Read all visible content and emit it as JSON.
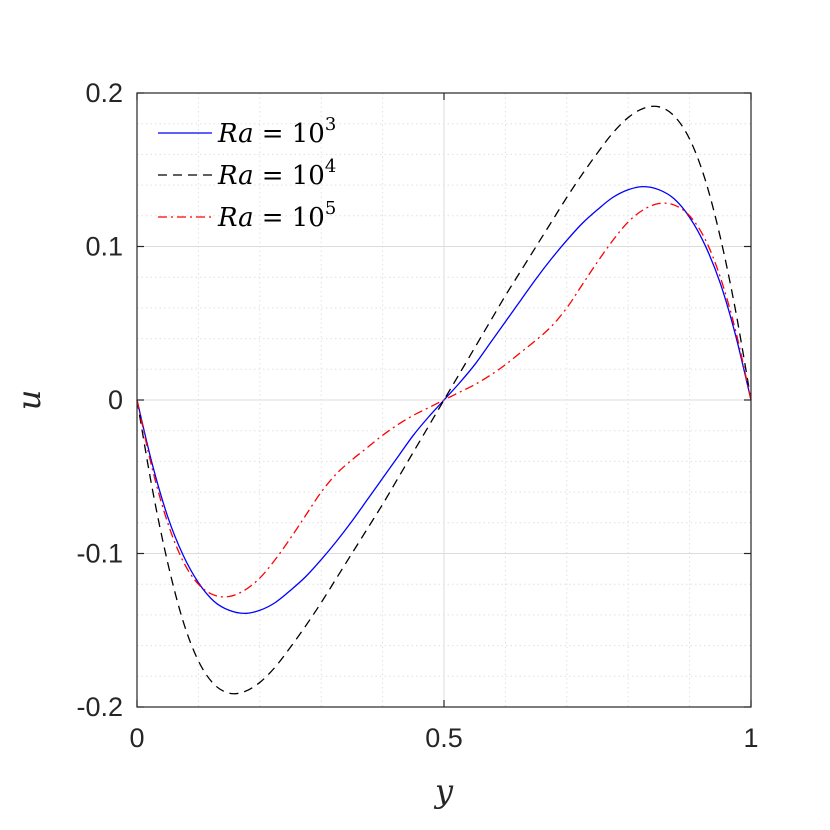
{
  "chart_data": {
    "type": "line",
    "xlabel": "y",
    "ylabel": "u",
    "xlim": [
      0,
      1
    ],
    "ylim": [
      -0.2,
      0.2
    ],
    "xticks": [
      0,
      0.5,
      1
    ],
    "xtick_labels": [
      "0",
      "0.5",
      "1"
    ],
    "yticks": [
      -0.2,
      -0.1,
      0,
      0.1,
      0.2
    ],
    "ytick_labels": [
      "-0.2",
      "-0.1",
      "0",
      "0.1",
      "0.2"
    ],
    "grid": true,
    "minor_grid": true,
    "legend_position": "top-left",
    "series": [
      {
        "name": "Ra = 10^3",
        "legend_base": "Ra = 10",
        "legend_exp": "3",
        "color": "#0000ff",
        "dash": "solid",
        "x": [
          0,
          0.025,
          0.05,
          0.075,
          0.1,
          0.125,
          0.15,
          0.175,
          0.2,
          0.225,
          0.25,
          0.275,
          0.3,
          0.325,
          0.35,
          0.375,
          0.4,
          0.425,
          0.45,
          0.475,
          0.5,
          0.525,
          0.55,
          0.575,
          0.6,
          0.625,
          0.65,
          0.675,
          0.7,
          0.725,
          0.75,
          0.775,
          0.8,
          0.825,
          0.85,
          0.875,
          0.9,
          0.925,
          0.95,
          0.975,
          1
        ],
        "y": [
          0,
          -0.042,
          -0.076,
          -0.101,
          -0.119,
          -0.131,
          -0.137,
          -0.139,
          -0.137,
          -0.132,
          -0.124,
          -0.115,
          -0.104,
          -0.092,
          -0.079,
          -0.065,
          -0.051,
          -0.037,
          -0.023,
          -0.011,
          0,
          0.011,
          0.023,
          0.037,
          0.051,
          0.065,
          0.079,
          0.092,
          0.104,
          0.115,
          0.124,
          0.132,
          0.137,
          0.139,
          0.137,
          0.131,
          0.119,
          0.101,
          0.076,
          0.042,
          0
        ]
      },
      {
        "name": "Ra = 10^4",
        "legend_base": "Ra = 10",
        "legend_exp": "4",
        "color": "#000000",
        "dash": "dashed",
        "x": [
          0,
          0.025,
          0.05,
          0.075,
          0.1,
          0.125,
          0.15,
          0.175,
          0.2,
          0.225,
          0.25,
          0.275,
          0.3,
          0.325,
          0.35,
          0.375,
          0.4,
          0.425,
          0.45,
          0.475,
          0.5,
          0.525,
          0.55,
          0.575,
          0.6,
          0.625,
          0.65,
          0.675,
          0.7,
          0.725,
          0.75,
          0.775,
          0.8,
          0.825,
          0.85,
          0.875,
          0.9,
          0.925,
          0.95,
          0.975,
          1
        ],
        "y": [
          0,
          -0.058,
          -0.106,
          -0.144,
          -0.17,
          -0.185,
          -0.191,
          -0.19,
          -0.184,
          -0.174,
          -0.161,
          -0.147,
          -0.132,
          -0.116,
          -0.1,
          -0.084,
          -0.068,
          -0.051,
          -0.034,
          -0.017,
          0,
          0.017,
          0.034,
          0.051,
          0.068,
          0.084,
          0.1,
          0.116,
          0.132,
          0.147,
          0.161,
          0.174,
          0.184,
          0.19,
          0.191,
          0.185,
          0.17,
          0.144,
          0.106,
          0.058,
          0
        ]
      },
      {
        "name": "Ra = 10^5",
        "legend_base": "Ra = 10",
        "legend_exp": "5",
        "color": "#ff0000",
        "dash": "dashdot",
        "x": [
          0,
          0.025,
          0.05,
          0.075,
          0.1,
          0.125,
          0.15,
          0.175,
          0.2,
          0.225,
          0.25,
          0.275,
          0.3,
          0.325,
          0.35,
          0.375,
          0.4,
          0.425,
          0.45,
          0.475,
          0.5,
          0.525,
          0.55,
          0.575,
          0.6,
          0.625,
          0.65,
          0.675,
          0.7,
          0.725,
          0.75,
          0.775,
          0.8,
          0.825,
          0.85,
          0.875,
          0.9,
          0.925,
          0.95,
          0.975,
          1
        ],
        "y": [
          0,
          -0.045,
          -0.08,
          -0.105,
          -0.12,
          -0.127,
          -0.128,
          -0.124,
          -0.116,
          -0.104,
          -0.09,
          -0.075,
          -0.06,
          -0.048,
          -0.039,
          -0.031,
          -0.023,
          -0.016,
          -0.01,
          -0.005,
          0,
          0.005,
          0.01,
          0.016,
          0.023,
          0.031,
          0.039,
          0.048,
          0.06,
          0.075,
          0.09,
          0.104,
          0.116,
          0.124,
          0.128,
          0.127,
          0.12,
          0.105,
          0.08,
          0.045,
          0
        ]
      }
    ]
  }
}
